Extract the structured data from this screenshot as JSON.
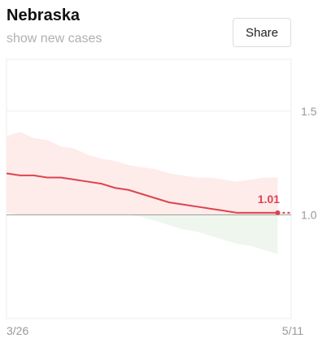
{
  "header": {
    "title": "Nebraska",
    "subtitle_link": "show new cases",
    "share_label": "Share"
  },
  "colors": {
    "line": "#e0424f",
    "band_above": "#fdecea",
    "band_below": "#eef6ee",
    "reference_line": "#999999",
    "grid": "#eeeeee",
    "axis_text": "#999999"
  },
  "chart_data": {
    "type": "line",
    "title": "",
    "xlabel": "",
    "ylabel": "",
    "x_tick_labels": [
      "3/26",
      "5/11"
    ],
    "y_ticks": [
      1.0,
      1.5
    ],
    "y_tick_labels": [
      "1.0",
      "1.5"
    ],
    "ylim": [
      0.5,
      1.75
    ],
    "reference_value": 1.0,
    "current_value_label": "1.01",
    "grid": true,
    "series": [
      {
        "values": [
          1.2,
          1.19,
          1.19,
          1.18,
          1.18,
          1.17,
          1.16,
          1.15,
          1.13,
          1.12,
          1.1,
          1.08,
          1.06,
          1.05,
          1.04,
          1.03,
          1.02,
          1.01,
          1.01,
          1.01,
          1.01
        ],
        "forecast": [
          1.01,
          1.01
        ],
        "band_upper": [
          1.38,
          1.4,
          1.37,
          1.36,
          1.33,
          1.32,
          1.29,
          1.27,
          1.26,
          1.24,
          1.23,
          1.22,
          1.2,
          1.19,
          1.18,
          1.18,
          1.17,
          1.16,
          1.17,
          1.18,
          1.18
        ],
        "band_lower": [
          1.01,
          1.0,
          1.0,
          1.0,
          1.0,
          1.0,
          1.0,
          1.0,
          1.0,
          1.0,
          0.99,
          0.97,
          0.95,
          0.93,
          0.92,
          0.9,
          0.88,
          0.86,
          0.85,
          0.83,
          0.81
        ]
      }
    ]
  }
}
